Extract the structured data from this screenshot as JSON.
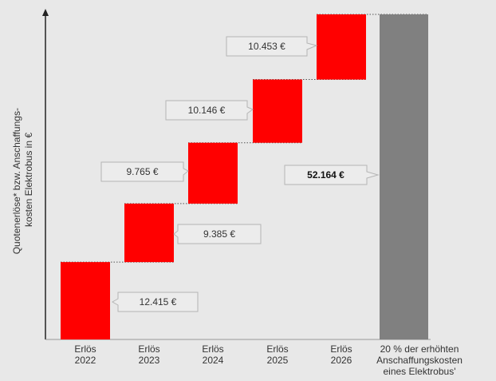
{
  "chart_data": {
    "type": "waterfall",
    "ylabel_lines": [
      "Quotenerlöse* bzw. Anschaffungs-",
      "kosten Elektrobus in €"
    ],
    "categories": [
      [
        "Erlös",
        "2022"
      ],
      [
        "Erlös",
        "2023"
      ],
      [
        "Erlös",
        "2024"
      ],
      [
        "Erlös",
        "2025"
      ],
      [
        "Erlös",
        "2026"
      ],
      [
        "20 % der erhöhten",
        "Anschaffungskosten",
        "eines Elektrobus'"
      ]
    ],
    "values": [
      12415,
      9385,
      9765,
      10146,
      10453
    ],
    "total": 52164,
    "labels": [
      "12.415 €",
      "9.385 €",
      "9.765 €",
      "10.146 €",
      "10.453 €"
    ],
    "total_label": "52.164 €",
    "ylim": [
      0,
      52164
    ],
    "colors": {
      "increment": "#ff0000",
      "total": "#808080",
      "connector": "#555555",
      "callout_border": "#b5b5b5",
      "callout_fill": "#ececec"
    }
  }
}
